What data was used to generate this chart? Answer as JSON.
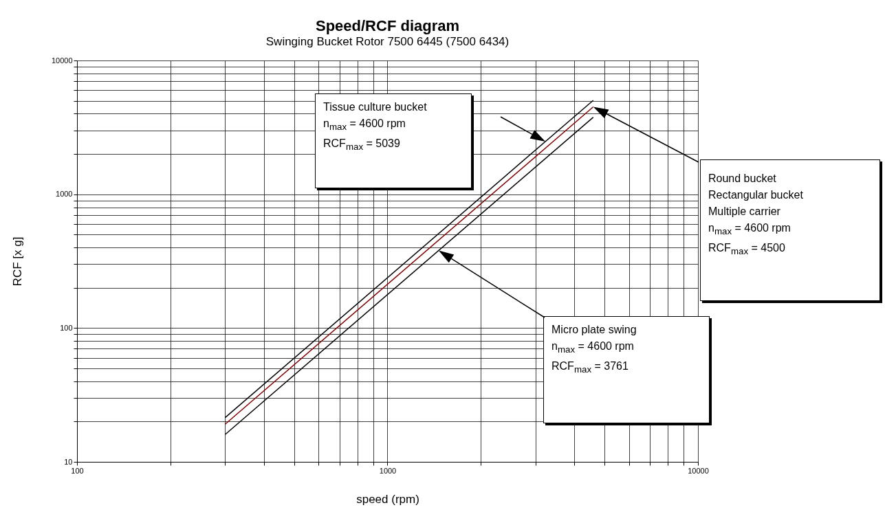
{
  "chart_data": {
    "type": "line",
    "title": "Speed/RCF diagram",
    "subtitle": "Swinging Bucket Rotor 7500 6445  (7500 6434)",
    "xlabel": "speed (rpm)",
    "ylabel": "RCF [x g]",
    "x": [
      300,
      4600
    ],
    "series": [
      {
        "color": "#000000",
        "values": [
          21.4,
          5039
        ]
      },
      {
        "color": "#800000",
        "values": [
          19.1,
          4500
        ]
      },
      {
        "color": "#000000",
        "values": [
          16.0,
          3761
        ]
      }
    ],
    "log": "xy",
    "grid": true,
    "legend": false,
    "xlim": [
      100,
      10000
    ],
    "ylim": [
      10,
      10000
    ],
    "xticks": [
      100,
      {
        "value": 200,
        "label": null
      },
      {
        "value": 300,
        "label": null
      },
      {
        "value": 400,
        "label": null
      },
      {
        "value": 500,
        "label": null
      },
      {
        "value": 600,
        "label": null
      },
      {
        "value": 700,
        "label": null
      },
      {
        "value": 800,
        "label": null
      },
      {
        "value": 900,
        "label": null
      },
      1000,
      {
        "value": 2000,
        "label": null
      },
      {
        "value": 3000,
        "label": null
      },
      {
        "value": 4000,
        "label": null
      },
      {
        "value": 5000,
        "label": null
      },
      {
        "value": 6000,
        "label": null
      },
      {
        "value": 7000,
        "label": null
      },
      {
        "value": 8000,
        "label": null
      },
      {
        "value": 9000,
        "label": null
      },
      10000
    ],
    "yticks": [
      10,
      {
        "value": 20,
        "label": null
      },
      {
        "value": 30,
        "label": null
      },
      {
        "value": 40,
        "label": null
      },
      {
        "value": 50,
        "label": null
      },
      {
        "value": 60,
        "label": null
      },
      {
        "value": 70,
        "label": null
      },
      {
        "value": 80,
        "label": null
      },
      {
        "value": 90,
        "label": null
      },
      100,
      {
        "value": 200,
        "label": null
      },
      {
        "value": 300,
        "label": null
      },
      {
        "value": 400,
        "label": null
      },
      {
        "value": 500,
        "label": null
      },
      {
        "value": 600,
        "label": null
      },
      {
        "value": 700,
        "label": null
      },
      {
        "value": 800,
        "label": null
      },
      {
        "value": 900,
        "label": null
      },
      1000,
      {
        "value": 2000,
        "label": null
      },
      {
        "value": 3000,
        "label": null
      },
      {
        "value": 4000,
        "label": null
      },
      {
        "value": 5000,
        "label": null
      },
      {
        "value": 6000,
        "label": null
      },
      {
        "value": 7000,
        "label": null
      },
      {
        "value": 8000,
        "label": null
      },
      {
        "value": 9000,
        "label": null
      },
      10000
    ],
    "annotations": [
      "Tissue culture bucket\nn$_{max}$ = 4600 rpm\nRCF$_{max}$ = 5039",
      "Round bucket\nRectangular bucket\nMultiple carrier\nn$_{max}$ = 4600 rpm\nRCF$_{max}$ = 4500",
      "Micro plate swing\nn$_{max}$ = 4600 rpm\nRCF$_{max}$ = 3761"
    ]
  }
}
